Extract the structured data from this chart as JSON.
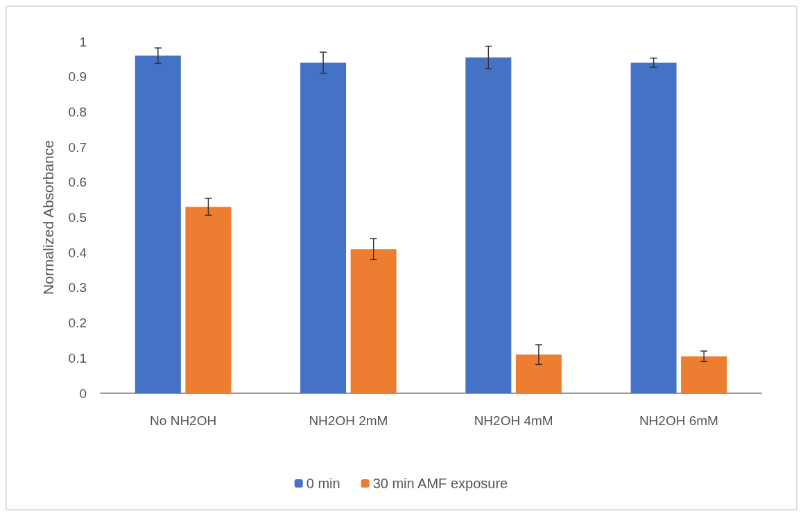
{
  "chart_data": {
    "type": "bar",
    "ylabel": "Normalized Absorbance",
    "categories": [
      "No NH2OH",
      "NH2OH 2mM",
      "NH2OH 4mM",
      "NH2OH 6mM"
    ],
    "series": [
      {
        "name": "0 min",
        "color": "#4472c4",
        "values": [
          0.96,
          0.94,
          0.955,
          0.94
        ],
        "errors": [
          0.022,
          0.03,
          0.032,
          0.013
        ]
      },
      {
        "name": "30 min AMF exposure",
        "color": "#ed7d31",
        "values": [
          0.53,
          0.41,
          0.11,
          0.105
        ],
        "errors": [
          0.024,
          0.03,
          0.028,
          0.015
        ]
      }
    ],
    "ylim": [
      0,
      1
    ],
    "yticks": [
      0,
      0.1,
      0.2,
      0.3,
      0.4,
      0.5,
      0.6,
      0.7,
      0.8,
      0.9,
      1
    ],
    "grid": false,
    "legend": "bottom"
  }
}
